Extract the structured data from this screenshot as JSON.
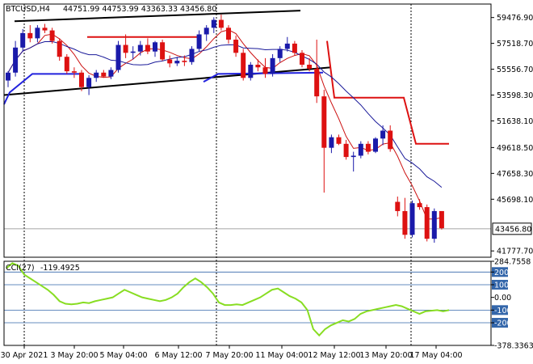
{
  "header": {
    "symbol_tf": "BTCUSD,H4",
    "ohlc": "44751.99 44753.99 43363.33 43456.80"
  },
  "indicator": {
    "title": "CCI(27)",
    "value": "-119.4925"
  },
  "colors": {
    "bull": "#1a1aaa",
    "bear": "#dd1111",
    "cci_line": "#88dd22",
    "trendline": "#000000",
    "level_line": "#3366aa"
  },
  "chart_data": [
    {
      "type": "candlestick",
      "title": "BTCUSD,H4",
      "y_ticks": [
        "59476.90",
        "57518.70",
        "55556.70",
        "53598.30",
        "51638.10",
        "49618.50",
        "47658.30",
        "45698.10",
        "41777.70"
      ],
      "current_price": "43456.80",
      "ylim": [
        41300,
        60500
      ],
      "x_ticks": [
        "30 Apr 2021",
        "3 May 20:00",
        "5 May 04:00",
        "6 May 12:00",
        "7 May 20:00",
        "11 May 04:00",
        "12 May 12:00",
        "13 May 20:00",
        "17 May 04:00"
      ],
      "candles": [
        {
          "o": 54700,
          "h": 55400,
          "l": 54200,
          "c": 55300
        },
        {
          "o": 55300,
          "h": 57700,
          "l": 55000,
          "c": 57200
        },
        {
          "o": 57200,
          "h": 58600,
          "l": 56900,
          "c": 58300
        },
        {
          "o": 58300,
          "h": 58900,
          "l": 57600,
          "c": 57900
        },
        {
          "o": 57900,
          "h": 58900,
          "l": 57600,
          "c": 58700
        },
        {
          "o": 58700,
          "h": 59000,
          "l": 58300,
          "c": 58500
        },
        {
          "o": 58500,
          "h": 58700,
          "l": 57500,
          "c": 57700
        },
        {
          "o": 57700,
          "h": 57900,
          "l": 56200,
          "c": 56500
        },
        {
          "o": 56500,
          "h": 56700,
          "l": 55200,
          "c": 55400
        },
        {
          "o": 55400,
          "h": 55700,
          "l": 54900,
          "c": 55300
        },
        {
          "o": 55300,
          "h": 55500,
          "l": 53900,
          "c": 54200
        },
        {
          "o": 54200,
          "h": 55100,
          "l": 53600,
          "c": 54900
        },
        {
          "o": 54900,
          "h": 55500,
          "l": 54600,
          "c": 55300
        },
        {
          "o": 55300,
          "h": 55500,
          "l": 54900,
          "c": 55000
        },
        {
          "o": 55000,
          "h": 55700,
          "l": 54800,
          "c": 55500
        },
        {
          "o": 55500,
          "h": 57700,
          "l": 55300,
          "c": 57400
        },
        {
          "o": 57400,
          "h": 58200,
          "l": 56400,
          "c": 56800
        },
        {
          "o": 56800,
          "h": 57300,
          "l": 56300,
          "c": 56900
        },
        {
          "o": 56900,
          "h": 57700,
          "l": 56600,
          "c": 57400
        },
        {
          "o": 57400,
          "h": 57900,
          "l": 56700,
          "c": 56900
        },
        {
          "o": 56900,
          "h": 57700,
          "l": 56500,
          "c": 57600
        },
        {
          "o": 57600,
          "h": 57800,
          "l": 56200,
          "c": 56300
        },
        {
          "o": 56300,
          "h": 56600,
          "l": 55700,
          "c": 56000
        },
        {
          "o": 56000,
          "h": 56500,
          "l": 55800,
          "c": 56200
        },
        {
          "o": 56200,
          "h": 56600,
          "l": 55800,
          "c": 56100
        },
        {
          "o": 56100,
          "h": 57300,
          "l": 55900,
          "c": 57100
        },
        {
          "o": 57100,
          "h": 58500,
          "l": 56900,
          "c": 58200
        },
        {
          "o": 58200,
          "h": 58900,
          "l": 57700,
          "c": 58700
        },
        {
          "o": 58700,
          "h": 59500,
          "l": 58300,
          "c": 59300
        },
        {
          "o": 59300,
          "h": 59700,
          "l": 58500,
          "c": 58700
        },
        {
          "o": 58700,
          "h": 58900,
          "l": 57500,
          "c": 57800
        },
        {
          "o": 57800,
          "h": 58100,
          "l": 56500,
          "c": 56800
        },
        {
          "o": 56800,
          "h": 57100,
          "l": 54700,
          "c": 54900
        },
        {
          "o": 54900,
          "h": 56100,
          "l": 54700,
          "c": 55900
        },
        {
          "o": 55900,
          "h": 56300,
          "l": 55400,
          "c": 55700
        },
        {
          "o": 55700,
          "h": 56400,
          "l": 54900,
          "c": 55200
        },
        {
          "o": 55200,
          "h": 56700,
          "l": 55000,
          "c": 56400
        },
        {
          "o": 56400,
          "h": 57300,
          "l": 56100,
          "c": 57100
        },
        {
          "o": 57100,
          "h": 58000,
          "l": 56900,
          "c": 57500
        },
        {
          "o": 57500,
          "h": 57700,
          "l": 56600,
          "c": 56800
        },
        {
          "o": 56800,
          "h": 57000,
          "l": 55700,
          "c": 55900
        },
        {
          "o": 55900,
          "h": 56400,
          "l": 55400,
          "c": 55600
        },
        {
          "o": 55600,
          "h": 57800,
          "l": 53000,
          "c": 53500
        },
        {
          "o": 53500,
          "h": 54000,
          "l": 46200,
          "c": 49600
        },
        {
          "o": 49600,
          "h": 50600,
          "l": 49200,
          "c": 50400
        },
        {
          "o": 50400,
          "h": 50600,
          "l": 49800,
          "c": 49900
        },
        {
          "o": 49900,
          "h": 50200,
          "l": 48700,
          "c": 48900
        },
        {
          "o": 48900,
          "h": 49300,
          "l": 47800,
          "c": 49000
        },
        {
          "o": 49000,
          "h": 50100,
          "l": 48800,
          "c": 49900
        },
        {
          "o": 49900,
          "h": 50100,
          "l": 49100,
          "c": 49300
        },
        {
          "o": 49300,
          "h": 50400,
          "l": 49200,
          "c": 50300
        },
        {
          "o": 50300,
          "h": 51300,
          "l": 49800,
          "c": 50900
        },
        {
          "o": 50900,
          "h": 51300,
          "l": 49300,
          "c": 49500
        },
        {
          "o": 45500,
          "h": 45900,
          "l": 44400,
          "c": 44800
        },
        {
          "o": 44800,
          "h": 45800,
          "l": 42700,
          "c": 43000
        },
        {
          "o": 43000,
          "h": 45600,
          "l": 42800,
          "c": 45400
        },
        {
          "o": 45400,
          "h": 45700,
          "l": 44900,
          "c": 45100
        },
        {
          "o": 45100,
          "h": 45300,
          "l": 42500,
          "c": 42700
        },
        {
          "o": 42700,
          "h": 45000,
          "l": 42400,
          "c": 44800
        },
        {
          "o": 44800,
          "h": 44800,
          "l": 43400,
          "c": 43500
        }
      ]
    },
    {
      "type": "line",
      "title": "CCI(27)",
      "y_ticks": [
        "284.7558",
        "200",
        "100",
        "0.00",
        "-100",
        "-200",
        "-378.3363"
      ],
      "levels": [
        200,
        100,
        -100,
        -200
      ],
      "ylim": [
        -378.3363,
        284.7558
      ],
      "values": [
        230,
        270,
        250,
        180,
        150,
        120,
        90,
        60,
        20,
        -30,
        -50,
        -55,
        -50,
        -40,
        -45,
        -30,
        -20,
        -10,
        0,
        30,
        60,
        40,
        20,
        0,
        -10,
        -20,
        -30,
        -20,
        0,
        30,
        80,
        120,
        150,
        120,
        80,
        30,
        -40,
        -60,
        -60,
        -55,
        -60,
        -40,
        -20,
        0,
        30,
        60,
        70,
        40,
        10,
        -10,
        -40,
        -100,
        -250,
        -300,
        -250,
        -220,
        -200,
        -180,
        -190,
        -170,
        -130,
        -110,
        -100,
        -90,
        -80,
        -70,
        -60,
        -70,
        -90,
        -110,
        -130,
        -110,
        -105,
        -100,
        -110,
        -100
      ]
    }
  ]
}
